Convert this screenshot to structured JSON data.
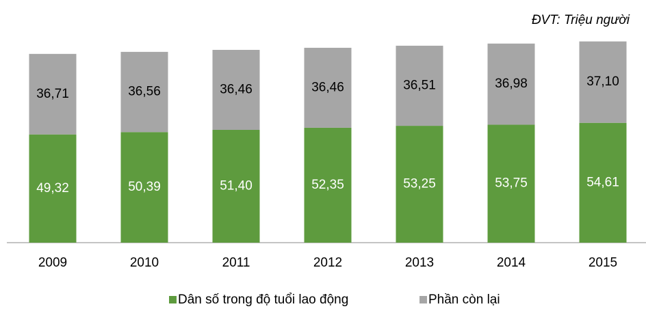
{
  "chart_data": {
    "type": "stacked_bar",
    "annotation": "ĐVT: Triệu người",
    "categories": [
      "2009",
      "2010",
      "2011",
      "2012",
      "2013",
      "2014",
      "2015"
    ],
    "series": [
      {
        "name": "Dân số trong độ tuổi lao động",
        "color": "#5e9b3e",
        "values": [
          49.32,
          50.39,
          51.4,
          52.35,
          53.25,
          53.75,
          54.61
        ],
        "value_labels": [
          "49,32",
          "50,39",
          "51,40",
          "52,35",
          "53,25",
          "53,75",
          "54,61"
        ]
      },
      {
        "name": "Phần còn lại",
        "color": "#a6a6a6",
        "values": [
          36.71,
          36.56,
          36.46,
          36.46,
          36.51,
          36.98,
          37.1
        ],
        "value_labels": [
          "36,71",
          "36,56",
          "36,46",
          "36,46",
          "36,51",
          "36,98",
          "37,10"
        ]
      }
    ],
    "ylim": [
      0,
      100
    ],
    "legend": "bottom"
  }
}
